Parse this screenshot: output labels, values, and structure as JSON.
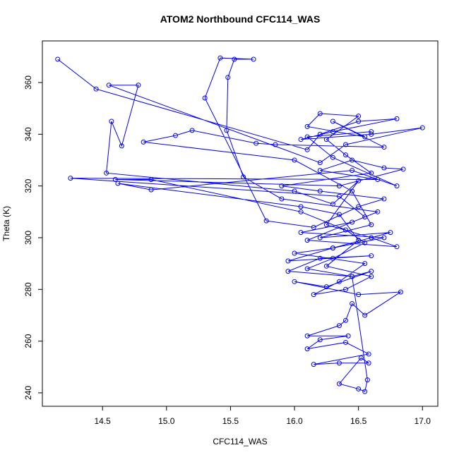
{
  "chart_data": {
    "type": "line",
    "markers": true,
    "title": "ATOM2 Northbound CFC114_WAS",
    "x_label": "CFC114_WAS",
    "y_label": "Theta (K)",
    "color": "#0000ff",
    "x": [
      14.15,
      14.45,
      16.1,
      16.2,
      16.5,
      16.8,
      16.3,
      16.05,
      16.6,
      17.0,
      16.4,
      16.2,
      14.55,
      14.78,
      14.65,
      14.57,
      14.53,
      16.0,
      16.3,
      16.5,
      16.25,
      16.6,
      16.8,
      16.1,
      16.55,
      16.35,
      14.25,
      16.65,
      16.2,
      16.45,
      16.7,
      16.85,
      16.35,
      14.6,
      14.88,
      16.05,
      16.4,
      16.55,
      16.3,
      16.1,
      16.45,
      16.6,
      16.25,
      16.0,
      16.5,
      16.83,
      16.55,
      16.45,
      16.4,
      16.35,
      16.1,
      16.42,
      16.2,
      16.1,
      16.4,
      16.58,
      16.15,
      16.35,
      16.58,
      16.52,
      16.35,
      16.5,
      16.55,
      16.57,
      16.45,
      15.95,
      16.2,
      16.6,
      15.95,
      16.3,
      16.7,
      16.05,
      16.45,
      16.65,
      15.9,
      15.6,
      15.47,
      15.48,
      15.53,
      15.68,
      15.42,
      15.3,
      15.78,
      16.15,
      16.5,
      16.7,
      16.2,
      15.9,
      16.6,
      16.4,
      16.25,
      16.5,
      16.2,
      16.1,
      16.55,
      16.3,
      16.7,
      15.85,
      15.7,
      15.2,
      15.07,
      14.82,
      16.0,
      16.45,
      16.6,
      16.2,
      16.75,
      16.3,
      16.0,
      16.55,
      16.35,
      16.15,
      16.4,
      16.6,
      16.25,
      16.5,
      16.35,
      16.05,
      14.62,
      14.88,
      16.45,
      16.8,
      16.3,
      16.1,
      16.6
    ],
    "values": [
      369,
      357.5,
      334,
      340,
      345,
      346,
      341,
      338,
      340,
      342.5,
      336,
      329,
      359,
      359,
      335.5,
      345,
      325,
      318,
      313,
      322,
      305,
      300,
      296.5,
      299,
      308,
      316,
      323,
      322.5,
      326,
      330,
      327,
      326.5,
      320,
      322.5,
      322.5,
      310,
      303,
      298,
      292,
      288,
      285,
      287,
      281,
      283,
      278,
      279,
      270,
      274.5,
      268,
      266,
      262,
      262,
      260.5,
      257,
      259.5,
      255,
      251,
      251.5,
      251.5,
      253.5,
      243.5,
      241.5,
      240.5,
      245,
      285,
      287,
      292,
      293,
      291,
      296,
      300,
      302,
      306,
      310,
      315,
      323.5,
      341.5,
      362,
      369,
      369,
      369.5,
      354,
      306.5,
      304,
      312,
      315,
      318,
      320,
      325,
      332,
      338,
      347,
      348,
      343,
      339,
      345,
      335,
      336,
      336.5,
      341.5,
      339.5,
      337,
      330,
      318,
      305,
      300,
      302,
      296,
      294,
      290,
      283,
      278,
      280,
      285,
      289,
      299,
      309,
      312,
      321,
      318.5,
      326,
      320,
      331,
      339,
      341
    ],
    "xlim": [
      14.03,
      17.12
    ],
    "ylim": [
      234.8,
      376.1
    ],
    "xticks": [
      14.5,
      {
        "value": 15,
        "label": "15.0"
      },
      15.5,
      {
        "value": 16,
        "label": "16.0"
      },
      16.5,
      {
        "value": 17,
        "label": "17.0"
      }
    ],
    "yticks": [
      240,
      260,
      280,
      300,
      320,
      340,
      360
    ]
  }
}
